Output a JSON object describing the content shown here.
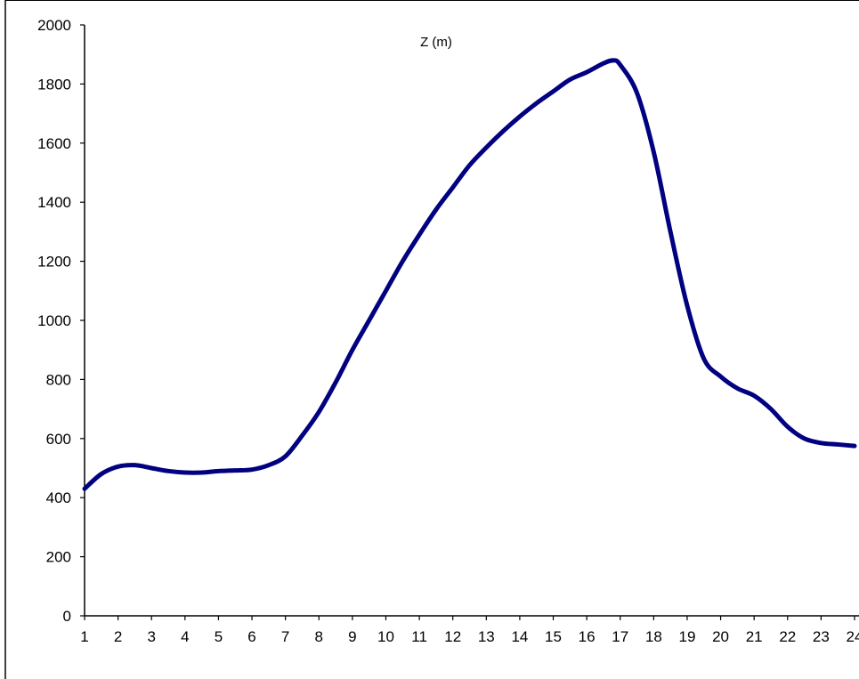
{
  "chart_data": {
    "type": "line",
    "title": "Z (m)",
    "xlabel": "",
    "ylabel": "",
    "xlim": [
      1,
      24
    ],
    "ylim": [
      0,
      2000
    ],
    "x_ticks": [
      "1",
      "2",
      "3",
      "4",
      "5",
      "6",
      "7",
      "8",
      "9",
      "10",
      "11",
      "12",
      "13",
      "14",
      "15",
      "16",
      "17",
      "18",
      "19",
      "20",
      "21",
      "22",
      "23",
      "24"
    ],
    "y_ticks": [
      "0",
      "200",
      "400",
      "600",
      "800",
      "1000",
      "1200",
      "1400",
      "1600",
      "1800",
      "2000"
    ],
    "grid": false,
    "legend": "none",
    "series": [
      {
        "color": "#000080",
        "x": [
          1,
          1.5,
          2,
          2.5,
          3,
          3.5,
          4,
          4.5,
          5,
          5.5,
          6,
          6.5,
          7,
          7.5,
          8,
          8.5,
          9,
          9.5,
          10,
          10.5,
          11,
          11.5,
          12,
          12.5,
          13,
          13.5,
          14,
          14.5,
          15,
          15.5,
          16,
          16.5,
          16.8,
          17,
          17.5,
          18,
          18.5,
          19,
          19.5,
          20,
          20.5,
          21,
          21.5,
          22,
          22.5,
          23,
          23.5,
          24
        ],
        "values": [
          430,
          480,
          505,
          510,
          500,
          490,
          485,
          485,
          490,
          492,
          495,
          510,
          540,
          610,
          690,
          790,
          900,
          1000,
          1100,
          1200,
          1290,
          1375,
          1450,
          1525,
          1585,
          1640,
          1690,
          1735,
          1775,
          1815,
          1840,
          1870,
          1880,
          1865,
          1770,
          1570,
          1300,
          1050,
          870,
          810,
          770,
          745,
          700,
          640,
          600,
          585,
          580,
          575
        ]
      }
    ]
  }
}
